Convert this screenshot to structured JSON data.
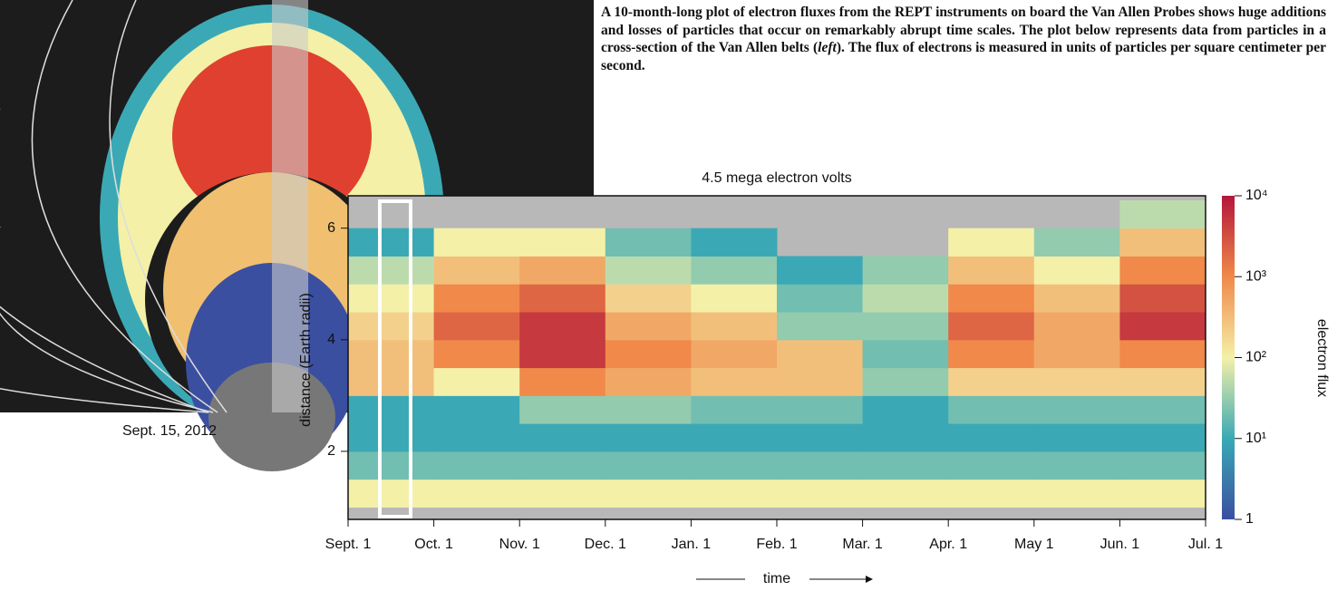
{
  "caption": "Sept. 15, 2012",
  "description": [
    "A 10-month-long plot of electron fluxes from the REPT instruments on board the Van Allen Probes shows huge additions and losses of particles that occur on remarkably abrupt time scales. The plot below represents data from particles in a cross-section of the Van Allen belts (",
    "left",
    "). The flux of electrons is measured in units of particles per square centimeter per second."
  ],
  "chart_data": {
    "type": "heatmap",
    "title": "4.5 mega electron volts",
    "x_label": "time",
    "y_label": "distance (Earth radii)",
    "colorbar_label": "electron flux",
    "xticks": [
      "Sept. 1",
      "Oct. 1",
      "Nov. 1",
      "Dec. 1",
      "Jan. 1",
      "Feb. 1",
      "Mar. 1",
      "Apr. 1",
      "May 1",
      "Jun. 1",
      "Jul. 1"
    ],
    "ylim": [
      0.78,
      6.58
    ],
    "yticks": [
      2,
      4,
      6
    ],
    "y_edges": [
      1,
      1.5,
      2,
      2.5,
      3,
      3.5,
      4,
      4.5,
      5,
      5.5,
      6,
      6.5
    ],
    "z": [
      [
        100,
        100,
        100,
        100,
        100,
        100,
        100,
        100,
        100,
        100
      ],
      [
        20,
        20,
        20,
        20,
        20,
        20,
        20,
        20,
        20,
        20
      ],
      [
        10,
        10,
        10,
        10,
        10,
        10,
        10,
        10,
        10,
        10
      ],
      [
        10,
        10,
        30,
        30,
        20,
        20,
        10,
        20,
        20,
        20
      ],
      [
        300,
        100,
        1000,
        500,
        300,
        300,
        30,
        200,
        200,
        200
      ],
      [
        300,
        1000,
        5000,
        1000,
        500,
        300,
        20,
        1000,
        500,
        1000
      ],
      [
        200,
        2000,
        5000,
        500,
        300,
        30,
        30,
        2000,
        500,
        5000
      ],
      [
        100,
        1000,
        2000,
        200,
        100,
        20,
        50,
        1000,
        300,
        3000
      ],
      [
        50,
        300,
        500,
        50,
        30,
        10,
        30,
        300,
        100,
        1000
      ],
      [
        10,
        100,
        100,
        20,
        10,
        null,
        null,
        100,
        30,
        300
      ],
      [
        null,
        null,
        null,
        null,
        null,
        null,
        null,
        null,
        null,
        50
      ]
    ],
    "clim": [
      1,
      10000
    ],
    "log_color": true,
    "cticks": [
      {
        "value": 1,
        "label": "1"
      },
      {
        "value": 10,
        "label": "10¹"
      },
      {
        "value": 100,
        "label": "10²"
      },
      {
        "value": 1000,
        "label": "10³"
      },
      {
        "value": 10000,
        "label": "10⁴"
      }
    ],
    "colormap": [
      "#3b4fa0",
      "#3aa9b5",
      "#f4f0a8",
      "#f0894a",
      "#b3163a"
    ],
    "missing_color": "#b8b8b8"
  }
}
